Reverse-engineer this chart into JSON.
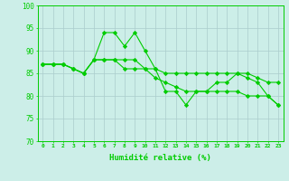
{
  "x": [
    0,
    1,
    2,
    3,
    4,
    5,
    6,
    7,
    8,
    9,
    10,
    11,
    12,
    13,
    14,
    15,
    16,
    17,
    18,
    19,
    20,
    21,
    22,
    23
  ],
  "line1": [
    87,
    87,
    87,
    86,
    85,
    88,
    88,
    88,
    88,
    88,
    86,
    86,
    85,
    85,
    85,
    85,
    85,
    85,
    85,
    85,
    85,
    84,
    83,
    83
  ],
  "line2": [
    87,
    87,
    87,
    86,
    85,
    88,
    94,
    94,
    91,
    94,
    90,
    86,
    81,
    81,
    78,
    81,
    81,
    83,
    83,
    85,
    84,
    83,
    80,
    78
  ],
  "line3": [
    87,
    87,
    87,
    86,
    85,
    88,
    88,
    88,
    86,
    86,
    86,
    84,
    83,
    82,
    81,
    81,
    81,
    81,
    81,
    81,
    80,
    80,
    80,
    78
  ],
  "line_color": "#00cc00",
  "bg_color": "#cceee8",
  "grid_color": "#aacccc",
  "xlabel": "Humidité relative (%)",
  "ylim": [
    70,
    100
  ],
  "xlim": [
    -0.5,
    23.5
  ],
  "yticks": [
    70,
    75,
    80,
    85,
    90,
    95,
    100
  ],
  "xticks": [
    0,
    1,
    2,
    3,
    4,
    5,
    6,
    7,
    8,
    9,
    10,
    11,
    12,
    13,
    14,
    15,
    16,
    17,
    18,
    19,
    20,
    21,
    22,
    23
  ]
}
